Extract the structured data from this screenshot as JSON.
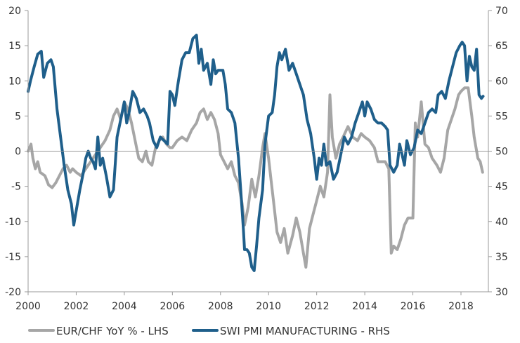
{
  "chart_data": {
    "type": "line",
    "title": "",
    "xlabel": "",
    "ylabel_left": "",
    "ylabel_right": "",
    "x_axis": {
      "min": 2000,
      "max": 2019,
      "ticks": [
        2000,
        2002,
        2004,
        2006,
        2008,
        2010,
        2012,
        2014,
        2016,
        2018
      ],
      "tick_labels": [
        "2000",
        "2002",
        "2004",
        "2006",
        "2008",
        "2010",
        "2012",
        "2014",
        "2016",
        "2018"
      ]
    },
    "y_left": {
      "min": -20,
      "max": 20,
      "ticks": [
        -20,
        -15,
        -10,
        -5,
        0,
        5,
        10,
        15,
        20
      ],
      "tick_labels": [
        "-20",
        "-15",
        "-10",
        "-5",
        "0",
        "5",
        "10",
        "15",
        "20"
      ]
    },
    "y_right": {
      "min": 30,
      "max": 70,
      "ticks": [
        30,
        35,
        40,
        45,
        50,
        55,
        60,
        65,
        70
      ],
      "tick_labels": [
        "30",
        "35",
        "40",
        "45",
        "50",
        "55",
        "60",
        "65",
        "70"
      ]
    },
    "grid": false,
    "legend_position": "bottom",
    "series": [
      {
        "name": "EUR/CHF YoY % - LHS",
        "axis": "left",
        "color": "#a6a6a6",
        "points": [
          [
            2000.0,
            0.0
          ],
          [
            2000.12,
            1.0
          ],
          [
            2000.2,
            -1.0
          ],
          [
            2000.3,
            -2.5
          ],
          [
            2000.4,
            -1.5
          ],
          [
            2000.5,
            -3.0
          ],
          [
            2000.7,
            -3.5
          ],
          [
            2000.85,
            -4.8
          ],
          [
            2001.0,
            -5.2
          ],
          [
            2001.15,
            -4.5
          ],
          [
            2001.3,
            -3.5
          ],
          [
            2001.45,
            -2.5
          ],
          [
            2001.6,
            -2.0
          ],
          [
            2001.75,
            -3.0
          ],
          [
            2001.85,
            -2.5
          ],
          [
            2002.0,
            -3.0
          ],
          [
            2002.2,
            -3.5
          ],
          [
            2002.4,
            -2.5
          ],
          [
            2002.6,
            -1.5
          ],
          [
            2002.8,
            -0.5
          ],
          [
            2003.0,
            0.5
          ],
          [
            2003.2,
            1.5
          ],
          [
            2003.4,
            3.0
          ],
          [
            2003.55,
            5.0
          ],
          [
            2003.7,
            6.0
          ],
          [
            2003.85,
            4.5
          ],
          [
            2004.0,
            7.0
          ],
          [
            2004.15,
            6.0
          ],
          [
            2004.3,
            4.0
          ],
          [
            2004.45,
            1.5
          ],
          [
            2004.6,
            -1.0
          ],
          [
            2004.75,
            -1.5
          ],
          [
            2004.9,
            0.0
          ],
          [
            2005.0,
            -1.5
          ],
          [
            2005.15,
            -2.0
          ],
          [
            2005.3,
            0.5
          ],
          [
            2005.45,
            1.5
          ],
          [
            2005.6,
            2.0
          ],
          [
            2005.75,
            1.0
          ],
          [
            2005.9,
            0.5
          ],
          [
            2006.0,
            0.5
          ],
          [
            2006.2,
            1.5
          ],
          [
            2006.4,
            2.0
          ],
          [
            2006.6,
            1.5
          ],
          [
            2006.8,
            3.0
          ],
          [
            2007.0,
            4.0
          ],
          [
            2007.15,
            5.5
          ],
          [
            2007.3,
            6.0
          ],
          [
            2007.45,
            4.5
          ],
          [
            2007.6,
            5.5
          ],
          [
            2007.75,
            4.5
          ],
          [
            2007.9,
            2.5
          ],
          [
            2008.0,
            -0.5
          ],
          [
            2008.15,
            -1.5
          ],
          [
            2008.3,
            -2.5
          ],
          [
            2008.45,
            -1.5
          ],
          [
            2008.6,
            -3.5
          ],
          [
            2008.75,
            -4.5
          ],
          [
            2008.9,
            -7.5
          ],
          [
            2009.0,
            -10.5
          ],
          [
            2009.15,
            -8.0
          ],
          [
            2009.3,
            -4.0
          ],
          [
            2009.45,
            -6.5
          ],
          [
            2009.6,
            -3.5
          ],
          [
            2009.75,
            0.5
          ],
          [
            2009.85,
            2.5
          ],
          [
            2010.0,
            -1.0
          ],
          [
            2010.1,
            -4.0
          ],
          [
            2010.2,
            -7.0
          ],
          [
            2010.35,
            -11.5
          ],
          [
            2010.5,
            -13.0
          ],
          [
            2010.65,
            -11.0
          ],
          [
            2010.8,
            -14.5
          ],
          [
            2011.0,
            -12.0
          ],
          [
            2011.15,
            -9.5
          ],
          [
            2011.3,
            -11.5
          ],
          [
            2011.45,
            -14.5
          ],
          [
            2011.55,
            -16.5
          ],
          [
            2011.7,
            -11.0
          ],
          [
            2011.85,
            -9.0
          ],
          [
            2012.0,
            -7.0
          ],
          [
            2012.15,
            -5.0
          ],
          [
            2012.3,
            -6.5
          ],
          [
            2012.45,
            -3.0
          ],
          [
            2012.55,
            8.0
          ],
          [
            2012.65,
            2.0
          ],
          [
            2012.8,
            -1.0
          ],
          [
            2012.95,
            1.0
          ],
          [
            2013.1,
            2.0
          ],
          [
            2013.3,
            3.5
          ],
          [
            2013.5,
            2.0
          ],
          [
            2013.7,
            1.5
          ],
          [
            2013.85,
            2.5
          ],
          [
            2014.0,
            2.0
          ],
          [
            2014.2,
            1.5
          ],
          [
            2014.4,
            0.5
          ],
          [
            2014.55,
            -1.5
          ],
          [
            2014.7,
            -1.5
          ],
          [
            2014.85,
            -1.5
          ],
          [
            2015.0,
            -2.5
          ],
          [
            2015.1,
            -14.5
          ],
          [
            2015.2,
            -13.5
          ],
          [
            2015.35,
            -14.0
          ],
          [
            2015.5,
            -12.5
          ],
          [
            2015.65,
            -10.5
          ],
          [
            2015.8,
            -9.5
          ],
          [
            2016.0,
            -9.5
          ],
          [
            2016.1,
            4.0
          ],
          [
            2016.2,
            2.0
          ],
          [
            2016.35,
            7.0
          ],
          [
            2016.5,
            1.0
          ],
          [
            2016.65,
            0.5
          ],
          [
            2016.8,
            -1.0
          ],
          [
            2017.0,
            -2.0
          ],
          [
            2017.15,
            -3.0
          ],
          [
            2017.3,
            -1.0
          ],
          [
            2017.45,
            3.0
          ],
          [
            2017.6,
            4.5
          ],
          [
            2017.75,
            6.0
          ],
          [
            2017.9,
            8.0
          ],
          [
            2018.0,
            8.5
          ],
          [
            2018.15,
            9.0
          ],
          [
            2018.3,
            9.0
          ],
          [
            2018.45,
            5.0
          ],
          [
            2018.55,
            2.0
          ],
          [
            2018.7,
            -1.0
          ],
          [
            2018.8,
            -1.5
          ],
          [
            2018.9,
            -3.0
          ]
        ]
      },
      {
        "name": "SWI PMI MANUFACTURING - RHS",
        "axis": "right",
        "color": "#1f5f8b",
        "points": [
          [
            2000.0,
            58.5
          ],
          [
            2000.1,
            60.0
          ],
          [
            2000.25,
            62.0
          ],
          [
            2000.4,
            63.8
          ],
          [
            2000.55,
            64.2
          ],
          [
            2000.65,
            60.5
          ],
          [
            2000.8,
            62.5
          ],
          [
            2000.95,
            63.0
          ],
          [
            2001.05,
            62.0
          ],
          [
            2001.2,
            56.0
          ],
          [
            2001.35,
            52.0
          ],
          [
            2001.5,
            48.0
          ],
          [
            2001.65,
            44.5
          ],
          [
            2001.8,
            42.5
          ],
          [
            2001.9,
            39.5
          ],
          [
            2002.0,
            41.5
          ],
          [
            2002.15,
            44.5
          ],
          [
            2002.3,
            47.0
          ],
          [
            2002.4,
            49.0
          ],
          [
            2002.5,
            50.0
          ],
          [
            2002.6,
            49.0
          ],
          [
            2002.7,
            48.5
          ],
          [
            2002.8,
            47.5
          ],
          [
            2002.9,
            52.0
          ],
          [
            2003.0,
            48.0
          ],
          [
            2003.1,
            49.0
          ],
          [
            2003.25,
            46.5
          ],
          [
            2003.4,
            43.5
          ],
          [
            2003.55,
            44.5
          ],
          [
            2003.7,
            52.0
          ],
          [
            2003.85,
            54.5
          ],
          [
            2004.0,
            57.0
          ],
          [
            2004.1,
            54.0
          ],
          [
            2004.2,
            55.5
          ],
          [
            2004.35,
            58.5
          ],
          [
            2004.5,
            57.5
          ],
          [
            2004.65,
            55.5
          ],
          [
            2004.8,
            56.0
          ],
          [
            2004.95,
            55.0
          ],
          [
            2005.05,
            54.0
          ],
          [
            2005.2,
            51.5
          ],
          [
            2005.35,
            50.5
          ],
          [
            2005.5,
            52.0
          ],
          [
            2005.65,
            51.5
          ],
          [
            2005.8,
            51.0
          ],
          [
            2005.9,
            58.5
          ],
          [
            2006.0,
            58.0
          ],
          [
            2006.1,
            56.5
          ],
          [
            2006.25,
            60.0
          ],
          [
            2006.4,
            63.0
          ],
          [
            2006.55,
            64.0
          ],
          [
            2006.7,
            64.0
          ],
          [
            2006.85,
            66.0
          ],
          [
            2007.0,
            66.5
          ],
          [
            2007.1,
            62.5
          ],
          [
            2007.2,
            64.5
          ],
          [
            2007.3,
            61.5
          ],
          [
            2007.45,
            62.5
          ],
          [
            2007.6,
            59.5
          ],
          [
            2007.7,
            63.0
          ],
          [
            2007.8,
            61.0
          ],
          [
            2007.9,
            61.5
          ],
          [
            2008.0,
            61.5
          ],
          [
            2008.1,
            61.5
          ],
          [
            2008.2,
            59.5
          ],
          [
            2008.3,
            56.0
          ],
          [
            2008.45,
            55.5
          ],
          [
            2008.6,
            54.0
          ],
          [
            2008.75,
            49.0
          ],
          [
            2008.85,
            44.0
          ],
          [
            2008.95,
            39.0
          ],
          [
            2009.0,
            36.0
          ],
          [
            2009.1,
            36.0
          ],
          [
            2009.2,
            35.5
          ],
          [
            2009.3,
            33.5
          ],
          [
            2009.4,
            33.0
          ],
          [
            2009.5,
            36.5
          ],
          [
            2009.6,
            40.5
          ],
          [
            2009.75,
            44.5
          ],
          [
            2009.85,
            51.0
          ],
          [
            2010.0,
            55.0
          ],
          [
            2010.15,
            55.5
          ],
          [
            2010.25,
            58.0
          ],
          [
            2010.35,
            62.0
          ],
          [
            2010.45,
            64.0
          ],
          [
            2010.55,
            63.0
          ],
          [
            2010.7,
            64.5
          ],
          [
            2010.85,
            61.5
          ],
          [
            2011.0,
            62.5
          ],
          [
            2011.15,
            61.0
          ],
          [
            2011.3,
            59.5
          ],
          [
            2011.45,
            58.0
          ],
          [
            2011.6,
            54.5
          ],
          [
            2011.75,
            52.5
          ],
          [
            2011.9,
            49.0
          ],
          [
            2012.0,
            46.0
          ],
          [
            2012.1,
            49.0
          ],
          [
            2012.2,
            48.0
          ],
          [
            2012.3,
            51.0
          ],
          [
            2012.4,
            48.0
          ],
          [
            2012.55,
            48.5
          ],
          [
            2012.7,
            46.0
          ],
          [
            2012.85,
            47.0
          ],
          [
            2013.0,
            49.5
          ],
          [
            2013.15,
            52.0
          ],
          [
            2013.3,
            51.0
          ],
          [
            2013.45,
            52.0
          ],
          [
            2013.6,
            54.0
          ],
          [
            2013.75,
            55.5
          ],
          [
            2013.9,
            57.0
          ],
          [
            2014.0,
            55.0
          ],
          [
            2014.1,
            57.0
          ],
          [
            2014.25,
            56.0
          ],
          [
            2014.4,
            54.5
          ],
          [
            2014.55,
            54.0
          ],
          [
            2014.7,
            54.0
          ],
          [
            2014.85,
            53.5
          ],
          [
            2014.95,
            53.0
          ],
          [
            2015.05,
            48.0
          ],
          [
            2015.2,
            47.0
          ],
          [
            2015.35,
            48.0
          ],
          [
            2015.45,
            51.0
          ],
          [
            2015.55,
            49.5
          ],
          [
            2015.65,
            48.0
          ],
          [
            2015.75,
            51.5
          ],
          [
            2015.9,
            49.5
          ],
          [
            2016.05,
            50.5
          ],
          [
            2016.2,
            53.0
          ],
          [
            2016.35,
            52.5
          ],
          [
            2016.5,
            54.0
          ],
          [
            2016.65,
            55.5
          ],
          [
            2016.8,
            56.0
          ],
          [
            2016.95,
            55.5
          ],
          [
            2017.05,
            58.0
          ],
          [
            2017.2,
            58.5
          ],
          [
            2017.35,
            57.5
          ],
          [
            2017.5,
            60.0
          ],
          [
            2017.65,
            62.0
          ],
          [
            2017.8,
            64.0
          ],
          [
            2017.95,
            65.0
          ],
          [
            2018.05,
            65.5
          ],
          [
            2018.15,
            65.0
          ],
          [
            2018.25,
            60.0
          ],
          [
            2018.35,
            63.5
          ],
          [
            2018.45,
            62.0
          ],
          [
            2018.55,
            61.5
          ],
          [
            2018.65,
            64.5
          ],
          [
            2018.75,
            58.0
          ],
          [
            2018.85,
            57.5
          ],
          [
            2018.92,
            57.8
          ]
        ]
      }
    ]
  }
}
